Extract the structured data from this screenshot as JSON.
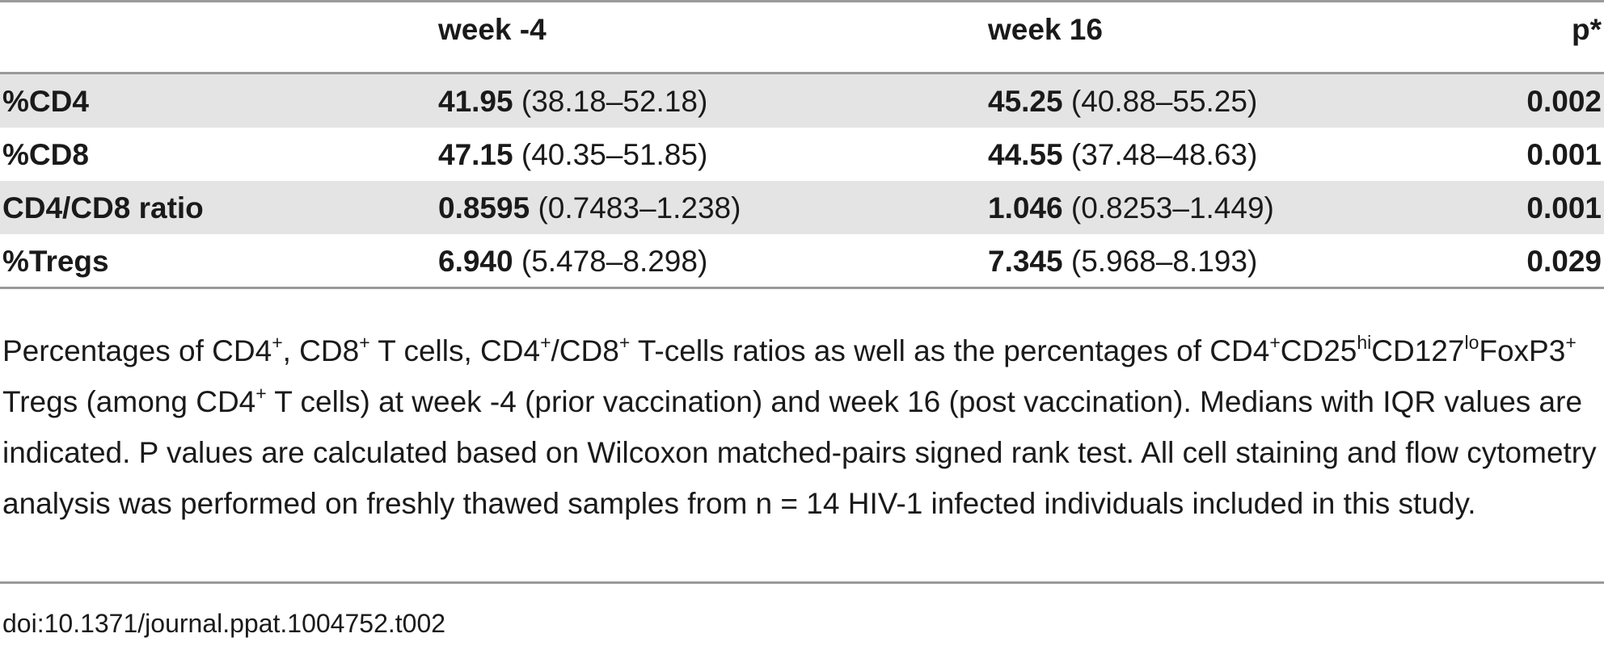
{
  "table": {
    "headers": [
      "",
      "week -4",
      "week 16",
      "p*"
    ],
    "rows": [
      {
        "label": "%CD4",
        "w4": {
          "median": "41.95",
          "iqr": "(38.18–52.18)"
        },
        "w16": {
          "median": "45.25",
          "iqr": "(40.88–55.25)"
        },
        "p": "0.002"
      },
      {
        "label": "%CD8",
        "w4": {
          "median": "47.15",
          "iqr": "(40.35–51.85)"
        },
        "w16": {
          "median": "44.55",
          "iqr": "(37.48–48.63)"
        },
        "p": "0.001"
      },
      {
        "label": "CD4/CD8 ratio",
        "w4": {
          "median": "0.8595",
          "iqr": "(0.7483–1.238)"
        },
        "w16": {
          "median": "1.046",
          "iqr": "(0.8253–1.449)"
        },
        "p": "0.001"
      },
      {
        "label": "%Tregs",
        "w4": {
          "median": "6.940",
          "iqr": "(5.478–8.298)"
        },
        "w16": {
          "median": "7.345",
          "iqr": "(5.968–8.193)"
        },
        "p": "0.029"
      }
    ]
  },
  "caption": {
    "s1": "Percentages of CD4",
    "s2": ", CD8",
    "s3": " T cells, CD4",
    "s4": "/CD8",
    "s5": " T-cells ratios as well as the percentages of CD4",
    "s6": "CD25",
    "s7": "CD127",
    "s8": "FoxP3",
    "s9": " Tregs (among CD4",
    "s10": " T cells) at week -4 (prior vaccination) and week 16 (post vaccination). Medians with IQR values are indicated. P values are calculated based on Wilcoxon matched-pairs signed rank test. All cell staining and flow cytometry analysis was performed on freshly thawed samples from n = 14 HIV-1 infected individuals included in this study.",
    "sup_plus": "+",
    "sup_hi": "hi",
    "sup_lo": "lo"
  },
  "doi": "doi:10.1371/journal.ppat.1004752.t002",
  "colors": {
    "rule": "#9a9a9a",
    "stripe": "#e4e4e4",
    "text": "#1a1a1a"
  }
}
